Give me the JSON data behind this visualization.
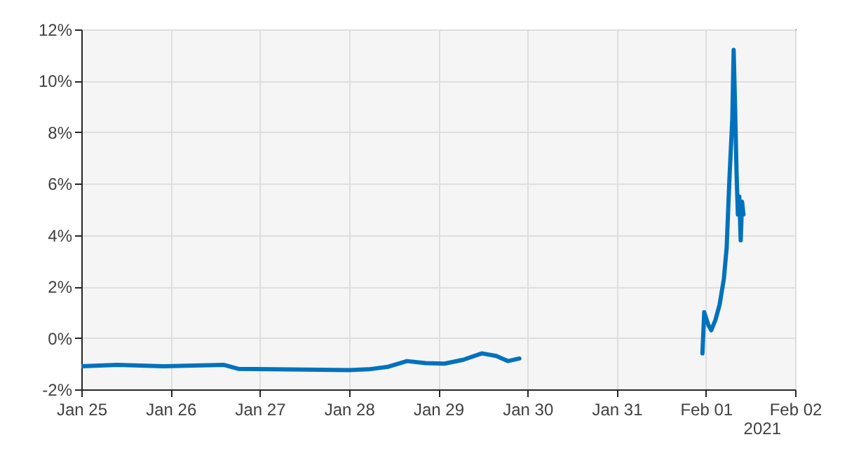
{
  "chart_data": {
    "type": "line",
    "x": [
      "2021-01-25T00:00",
      "2021-01-25T09:36",
      "2021-01-25T22:05",
      "2021-01-26T14:24",
      "2021-01-26T18:14",
      "2021-01-27T12:00",
      "2021-01-28T00:00",
      "2021-01-28T05:17",
      "2021-01-28T10:34",
      "2021-01-28T15:36",
      "2021-01-28T20:38",
      "2021-01-29T01:41",
      "2021-01-29T06:43",
      "2021-01-29T11:46",
      "2021-01-29T15:36",
      "2021-01-29T18:43",
      "2021-01-29T21:50",
      "2021-01-30T12:00",
      "2021-01-31T23:04",
      "2021-01-31T23:33",
      "2021-02-01T00:41",
      "2021-02-01T01:26",
      "2021-02-01T02:34",
      "2021-02-01T03:42",
      "2021-02-01T04:50",
      "2021-02-01T05:35",
      "2021-02-01T06:20",
      "2021-02-01T07:06",
      "2021-02-01T07:28",
      "2021-02-01T07:51",
      "2021-02-01T08:14",
      "2021-02-01T08:36",
      "2021-02-01T08:59",
      "2021-02-01T09:22",
      "2021-02-01T09:44",
      "2021-02-01T10:06"
    ],
    "series": [
      {
        "color": "#0072bd",
        "values": [
          -1.1,
          -1.05,
          -1.1,
          -1.05,
          -1.2,
          -1.23,
          -1.25,
          -1.22,
          -1.12,
          -0.9,
          -0.98,
          -1.0,
          -0.85,
          -0.6,
          -0.7,
          -0.9,
          -0.8,
          null,
          -0.6,
          1.0,
          0.5,
          0.3,
          0.7,
          1.3,
          2.3,
          3.5,
          6.2,
          8.5,
          11.2,
          9.0,
          6.5,
          4.8,
          5.5,
          3.8,
          5.3,
          4.8
        ]
      }
    ],
    "xlim": [
      "2021-01-25",
      "2021-02-02"
    ],
    "xticks": [
      {
        "value": "2021-01-25",
        "label": "Jan 25"
      },
      {
        "value": "2021-01-26",
        "label": "Jan 26"
      },
      {
        "value": "2021-01-27",
        "label": "Jan 27"
      },
      {
        "value": "2021-01-28",
        "label": "Jan 28"
      },
      {
        "value": "2021-01-29",
        "label": "Jan 29"
      },
      {
        "value": "2021-01-30",
        "label": "Jan 30"
      },
      {
        "value": "2021-01-31",
        "label": "Jan 31"
      },
      {
        "value": "2021-02-01",
        "label": "Feb 01"
      },
      {
        "value": "2021-02-02",
        "label": "Feb 02"
      }
    ],
    "ylim": [
      -2,
      12
    ],
    "yticks": [
      {
        "value": -2,
        "label": "-2%"
      },
      {
        "value": 0,
        "label": "0%"
      },
      {
        "value": 2,
        "label": "2%"
      },
      {
        "value": 4,
        "label": "4%"
      },
      {
        "value": 6,
        "label": "6%"
      },
      {
        "value": 8,
        "label": "8%"
      },
      {
        "value": 10,
        "label": "10%"
      },
      {
        "value": 12,
        "label": "12%"
      }
    ],
    "annotations": [
      "2021"
    ],
    "grid": true,
    "line_style": "solid",
    "marker": "none"
  }
}
